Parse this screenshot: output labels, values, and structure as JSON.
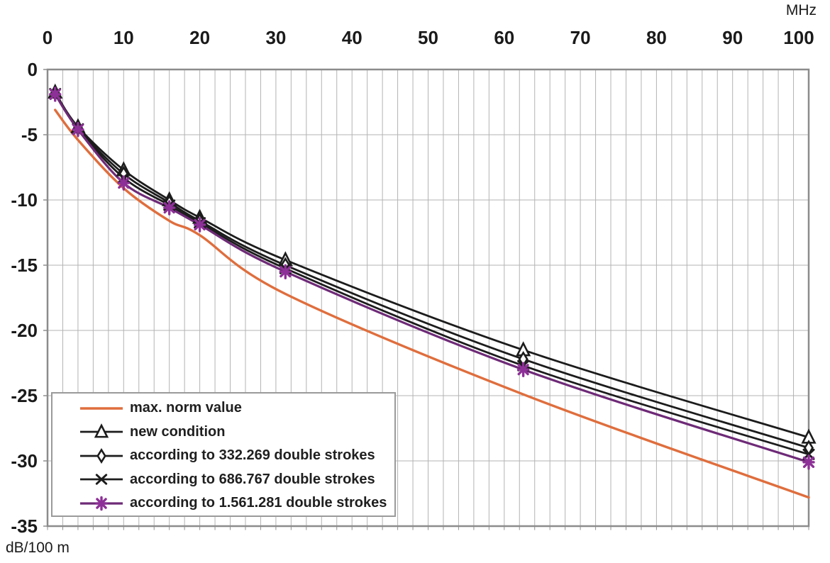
{
  "chart_data": {
    "type": "line",
    "title": "",
    "x_axis": {
      "unit": "MHz",
      "position": "top",
      "range": [
        0,
        100
      ],
      "ticks": [
        0,
        10,
        20,
        30,
        40,
        50,
        60,
        70,
        80,
        90,
        100
      ],
      "minor_gridline_step": 2
    },
    "y_axis": {
      "unit": "dB/100 m",
      "range": [
        -35,
        0
      ],
      "ticks": [
        0,
        -5,
        -10,
        -15,
        -20,
        -25,
        -30,
        -35
      ],
      "major_gridline_step": 5
    },
    "grid": "on",
    "legend_position": "bottom-left",
    "x": [
      1,
      4,
      10,
      16,
      20,
      31.25,
      62.5,
      100
    ],
    "series": [
      {
        "name": "max. norm value",
        "marker": "none",
        "line_color": "#df6e3d",
        "marker_color": "#df6e3d",
        "line_width": 3.4,
        "values": [
          -3.1,
          -5.4,
          -9.1,
          -11.6,
          -12.7,
          -17.2,
          -24.9,
          -32.8
        ]
      },
      {
        "name": "new condition",
        "marker": "triangle",
        "line_color": "#1c1c1c",
        "marker_color": "#1c1c1c",
        "line_width": 2.8,
        "values": [
          -1.75,
          -4.4,
          -7.7,
          -10.0,
          -11.35,
          -14.6,
          -21.5,
          -28.2
        ]
      },
      {
        "name": "according to 332.269 double strokes",
        "marker": "diamond",
        "line_color": "#1c1c1c",
        "marker_color": "#1c1c1c",
        "line_width": 2.8,
        "values": [
          -1.8,
          -4.5,
          -8.0,
          -10.2,
          -11.6,
          -15.0,
          -22.2,
          -29.0
        ]
      },
      {
        "name": "according to 686.767 double strokes",
        "marker": "x",
        "line_color": "#1c1c1c",
        "marker_color": "#1c1c1c",
        "line_width": 2.8,
        "values": [
          -1.85,
          -4.55,
          -8.3,
          -10.4,
          -11.75,
          -15.25,
          -22.7,
          -29.5
        ]
      },
      {
        "name": "according to 1.561.281 double strokes",
        "marker": "asterisk",
        "line_color": "#6e2a77",
        "marker_color": "#8d3097",
        "line_width": 3.2,
        "values": [
          -1.9,
          -4.6,
          -8.7,
          -10.6,
          -11.9,
          -15.5,
          -23.0,
          -30.1
        ]
      }
    ]
  },
  "colors": {
    "gridline": "#b3b3b3",
    "frame": "#8c8c8c",
    "tick": "#8f8f8f",
    "text": "#1a1a1a",
    "background": "#ffffff",
    "legend_border": "#9a9a9a"
  }
}
